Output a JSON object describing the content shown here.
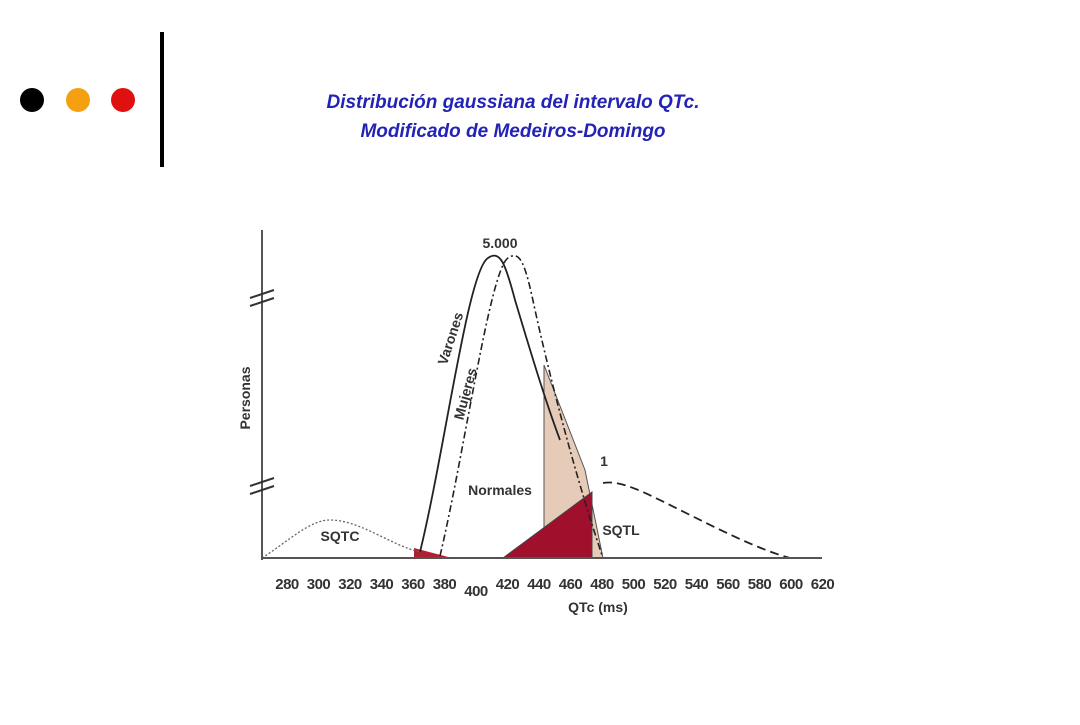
{
  "header": {
    "title_lines": [
      "Distribución gaussiana del intervalo QTc.",
      "Modificado de Medeiros-Domingo"
    ]
  },
  "figure": {
    "y_axis_label": "Personas",
    "x_axis_label": "QTc (ms)",
    "x_ticks": [
      "280",
      "300",
      "320",
      "340",
      "360",
      "380",
      "400",
      "420",
      "440",
      "460",
      "480",
      "500",
      "520",
      "540",
      "560",
      "580",
      "600",
      "620"
    ],
    "labels": {
      "peak": "5.000",
      "varones": "Varones",
      "mujeres": "Mujeres",
      "normales": "Normales",
      "sqtc": "SQTC",
      "sqtl": "SQTL",
      "one": "1"
    }
  }
}
